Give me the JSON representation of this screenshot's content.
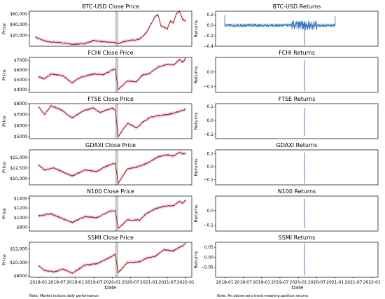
{
  "figure": {
    "xlabel": "Date",
    "note_left": "Note: Market indices daily performance",
    "note_right": "Note: An above-zero trend meaning positive returns"
  },
  "chart_data": [
    {
      "type": "line",
      "title": "BTC-USD Close Price",
      "ylabel": "Price",
      "xlim": [
        "2017-10",
        "2022-03"
      ],
      "ylim": [
        0,
        65000
      ],
      "yticks": [
        20000,
        40000,
        60000
      ],
      "ytick_labels": [
        "$20,000",
        "$40,000",
        "$60,000"
      ],
      "xticks": [],
      "series": [
        {
          "color": "#8b1a10",
          "x": [
            "2017-12",
            "2018-01",
            "2018-04",
            "2018-08",
            "2018-12",
            "2019-04",
            "2019-07",
            "2019-10",
            "2020-01",
            "2020-03",
            "2020-05",
            "2020-08",
            "2020-10",
            "2020-12",
            "2021-01",
            "2021-03",
            "2021-04",
            "2021-05",
            "2021-06",
            "2021-07",
            "2021-08",
            "2021-09",
            "2021-10",
            "2021-11",
            "2021-12",
            "2022-01"
          ],
          "values": [
            17000,
            14000,
            8000,
            7000,
            3500,
            5000,
            10500,
            8300,
            7200,
            5000,
            9000,
            11500,
            13500,
            24000,
            34000,
            55000,
            58000,
            37000,
            35000,
            32000,
            47000,
            43000,
            61000,
            65000,
            50000,
            47000
          ]
        }
      ],
      "band_color": "#f7b5d9",
      "shade_x": [
        "2020-02",
        "2020-03"
      ]
    },
    {
      "type": "line",
      "title": "FCHI Close Price",
      "ylabel": "Price",
      "xlim": [
        "2017-10",
        "2022-03"
      ],
      "ylim": [
        3700,
        7300
      ],
      "yticks": [
        4000,
        5000,
        6000,
        7000
      ],
      "ytick_labels": [
        "$4000",
        "$5000",
        "$6000",
        "$7000"
      ],
      "xticks": [],
      "series": [
        {
          "color": "#8b1a10",
          "x": [
            "2018-01",
            "2018-03",
            "2018-05",
            "2018-09",
            "2018-12",
            "2019-03",
            "2019-07",
            "2019-10",
            "2020-01",
            "2020-02",
            "2020-03",
            "2020-06",
            "2020-09",
            "2020-11",
            "2021-01",
            "2021-04",
            "2021-07",
            "2021-09",
            "2021-11",
            "2021-12",
            "2022-01"
          ],
          "values": [
            5300,
            5100,
            5600,
            5400,
            4700,
            5300,
            5600,
            5500,
            6000,
            6100,
            4000,
            4900,
            4800,
            5500,
            5600,
            6300,
            6600,
            6500,
            7100,
            6800,
            7200
          ]
        }
      ],
      "band_color": "#f7b5d9",
      "shade_x": [
        "2020-02",
        "2020-03"
      ]
    },
    {
      "type": "line",
      "title": "FTSE Close Price",
      "ylabel": "Price",
      "xlim": [
        "2017-10",
        "2022-03"
      ],
      "ylim": [
        4800,
        8000
      ],
      "yticks": [
        5000,
        6000,
        7000,
        8000
      ],
      "ytick_labels": [
        "$5000",
        "$6000",
        "$7000",
        "$8000"
      ],
      "xticks": [],
      "series": [
        {
          "color": "#8b1a10",
          "x": [
            "2018-01",
            "2018-03",
            "2018-05",
            "2018-08",
            "2018-12",
            "2019-04",
            "2019-07",
            "2019-09",
            "2020-01",
            "2020-02",
            "2020-03",
            "2020-06",
            "2020-09",
            "2020-11",
            "2021-01",
            "2021-04",
            "2021-07",
            "2021-10",
            "2021-12",
            "2022-01"
          ],
          "values": [
            7700,
            7000,
            7800,
            7500,
            6700,
            7400,
            7600,
            7200,
            7600,
            7400,
            5000,
            6200,
            5800,
            6300,
            6700,
            6900,
            7000,
            7200,
            7400,
            7500
          ]
        }
      ],
      "band_color": "#f7b5d9",
      "shade_x": [
        "2020-02",
        "2020-03"
      ]
    },
    {
      "type": "line",
      "title": "GDAXI Close Price",
      "ylabel": "Price",
      "xlim": [
        "2017-10",
        "2022-03"
      ],
      "ylim": [
        8500,
        16800
      ],
      "yticks": [
        10000,
        12500,
        15000
      ],
      "ytick_labels": [
        "$10,000",
        "$12,500",
        "$15,000"
      ],
      "xticks": [],
      "series": [
        {
          "color": "#8b1a10",
          "x": [
            "2018-01",
            "2018-03",
            "2018-06",
            "2018-12",
            "2019-04",
            "2019-08",
            "2019-12",
            "2020-02",
            "2020-03",
            "2020-06",
            "2020-09",
            "2020-11",
            "2021-01",
            "2021-04",
            "2021-07",
            "2021-09",
            "2021-11",
            "2021-12",
            "2022-01"
          ],
          "values": [
            13200,
            12000,
            12500,
            10600,
            12000,
            11700,
            13200,
            13600,
            8900,
            12300,
            12700,
            13200,
            13800,
            15200,
            15600,
            15300,
            16200,
            15800,
            16000
          ]
        }
      ],
      "band_color": "#f7b5d9",
      "shade_x": [
        "2020-02",
        "2020-03"
      ]
    },
    {
      "type": "line",
      "title": "N100 Close Price",
      "ylabel": "Price",
      "xlim": [
        "2017-10",
        "2022-03"
      ],
      "ylim": [
        720,
        1450
      ],
      "yticks": [
        800,
        1000,
        1200,
        1400
      ],
      "ytick_labels": [
        "$800",
        "$1000",
        "$1200",
        "$1400"
      ],
      "xticks": [],
      "series": [
        {
          "color": "#8b1a10",
          "x": [
            "2018-01",
            "2018-05",
            "2018-12",
            "2019-04",
            "2019-08",
            "2019-12",
            "2020-02",
            "2020-03",
            "2020-06",
            "2020-10",
            "2020-12",
            "2021-03",
            "2021-06",
            "2021-09",
            "2021-11",
            "2021-12",
            "2022-01"
          ],
          "values": [
            1040,
            1080,
            900,
            1020,
            1000,
            1130,
            1150,
            780,
            950,
            950,
            1080,
            1180,
            1240,
            1250,
            1340,
            1300,
            1360
          ]
        }
      ],
      "band_color": "#f7b5d9",
      "shade_x": [
        "2020-02",
        "2020-03"
      ]
    },
    {
      "type": "line",
      "title": "SSMI Close Price",
      "ylabel": "Price",
      "xlim": [
        "2017-10",
        "2022-03"
      ],
      "ylim": [
        7800,
        13000
      ],
      "yticks": [
        8000,
        10000,
        12000
      ],
      "ytick_labels": [
        "$8000",
        "$10,000",
        "$12,000"
      ],
      "xlabel": "Date",
      "xticks": [
        "2018-01",
        "2018-07",
        "2019-01",
        "2019-07",
        "2020-01",
        "2020-07",
        "2021-01",
        "2021-07",
        "2022-01"
      ],
      "series": [
        {
          "color": "#8b1a10",
          "x": [
            "2018-01",
            "2018-03",
            "2018-06",
            "2018-09",
            "2018-12",
            "2019-04",
            "2019-08",
            "2019-12",
            "2020-02",
            "2020-03",
            "2020-06",
            "2020-10",
            "2020-12",
            "2021-03",
            "2021-06",
            "2021-09",
            "2021-11",
            "2021-12",
            "2022-01"
          ],
          "values": [
            9500,
            8800,
            8600,
            9000,
            8400,
            9600,
            9800,
            10700,
            11200,
            8500,
            10000,
            10100,
            10600,
            10900,
            11900,
            11700,
            12300,
            12400,
            12900
          ]
        }
      ],
      "band_color": "#f7b5d9",
      "shade_x": [
        "2020-02",
        "2020-03"
      ]
    },
    {
      "type": "line",
      "title": "BTC-USD Returns",
      "ylabel": "Returns",
      "xlim": [
        "2017-10",
        "2022-03"
      ],
      "ylim": [
        -0.4,
        0.27
      ],
      "yticks": [
        0.2,
        0.0,
        -0.2,
        -0.4
      ],
      "ytick_labels": [
        "0.2",
        "0.0",
        "−0.2",
        "−0.4"
      ],
      "xticks": [],
      "series": [
        {
          "color": "#3b72b5",
          "x": [
            "2018-01",
            "2020-03",
            "2021-01"
          ],
          "values": [
            0.2,
            -0.38,
            0.18
          ]
        }
      ],
      "band_color": "#c9f0f5"
    },
    {
      "type": "line",
      "title": "FCHI Returns",
      "ylabel": "Returns",
      "xlim": [
        "2017-10",
        "2022-03"
      ],
      "ylim": [
        -0.14,
        0.1
      ],
      "yticks": [
        0.0,
        -0.1
      ],
      "ytick_labels": [
        "0.0",
        "−0.1"
      ],
      "xticks": [],
      "series": [
        {
          "color": "#3b72b5",
          "x": [
            "2020-03",
            "2020-03"
          ],
          "values": [
            -0.13,
            0.08
          ]
        }
      ],
      "band_color": "#c9f0f5"
    },
    {
      "type": "line",
      "title": "FTSE Returns",
      "ylabel": "Returns",
      "xlim": [
        "2017-10",
        "2022-03"
      ],
      "ylim": [
        -0.13,
        0.12
      ],
      "yticks": [
        0.1,
        0.0,
        -0.1
      ],
      "ytick_labels": [
        "0.1",
        "0.0",
        "−0.1"
      ],
      "xticks": [],
      "series": [
        {
          "color": "#3b72b5",
          "x": [
            "2020-03",
            "2020-03"
          ],
          "values": [
            -0.11,
            0.09
          ]
        }
      ],
      "band_color": "#c9f0f5"
    },
    {
      "type": "line",
      "title": "GDAXI Returns",
      "ylabel": "Returns",
      "xlim": [
        "2017-10",
        "2022-03"
      ],
      "ylim": [
        -0.14,
        0.13
      ],
      "yticks": [
        0.1,
        0.0,
        -0.1
      ],
      "ytick_labels": [
        "0.1",
        "0.0",
        "−0.1"
      ],
      "xticks": [],
      "series": [
        {
          "color": "#3b72b5",
          "x": [
            "2020-03",
            "2020-03"
          ],
          "values": [
            -0.13,
            0.11
          ]
        }
      ],
      "band_color": "#c9f0f5"
    },
    {
      "type": "line",
      "title": "N100 Returns",
      "ylabel": "Returns",
      "xlim": [
        "2017-10",
        "2022-03"
      ],
      "ylim": [
        -0.14,
        0.1
      ],
      "yticks": [
        0.0,
        -0.1
      ],
      "ytick_labels": [
        "0.0",
        "−0.1"
      ],
      "xticks": [],
      "series": [
        {
          "color": "#3b72b5",
          "x": [
            "2020-03",
            "2020-03"
          ],
          "values": [
            -0.12,
            0.08
          ]
        }
      ],
      "band_color": "#c9f0f5"
    },
    {
      "type": "line",
      "title": "SSMI Returns",
      "ylabel": "Returns",
      "xlim": [
        "2017-10",
        "2022-03"
      ],
      "ylim": [
        -0.1,
        0.075
      ],
      "yticks": [
        0.05,
        0.0,
        -0.05
      ],
      "ytick_labels": [
        "0.05",
        "0.00",
        "−0.05"
      ],
      "xlabel": "Date",
      "xticks": [
        "2018-01",
        "2018-07",
        "2019-01",
        "2019-07",
        "2020-01",
        "2020-07",
        "2021-01",
        "2021-07",
        "2022-01"
      ],
      "series": [
        {
          "color": "#3b72b5",
          "x": [
            "2020-03",
            "2020-03"
          ],
          "values": [
            -0.09,
            0.07
          ]
        }
      ],
      "band_color": "#c9f0f5"
    }
  ]
}
